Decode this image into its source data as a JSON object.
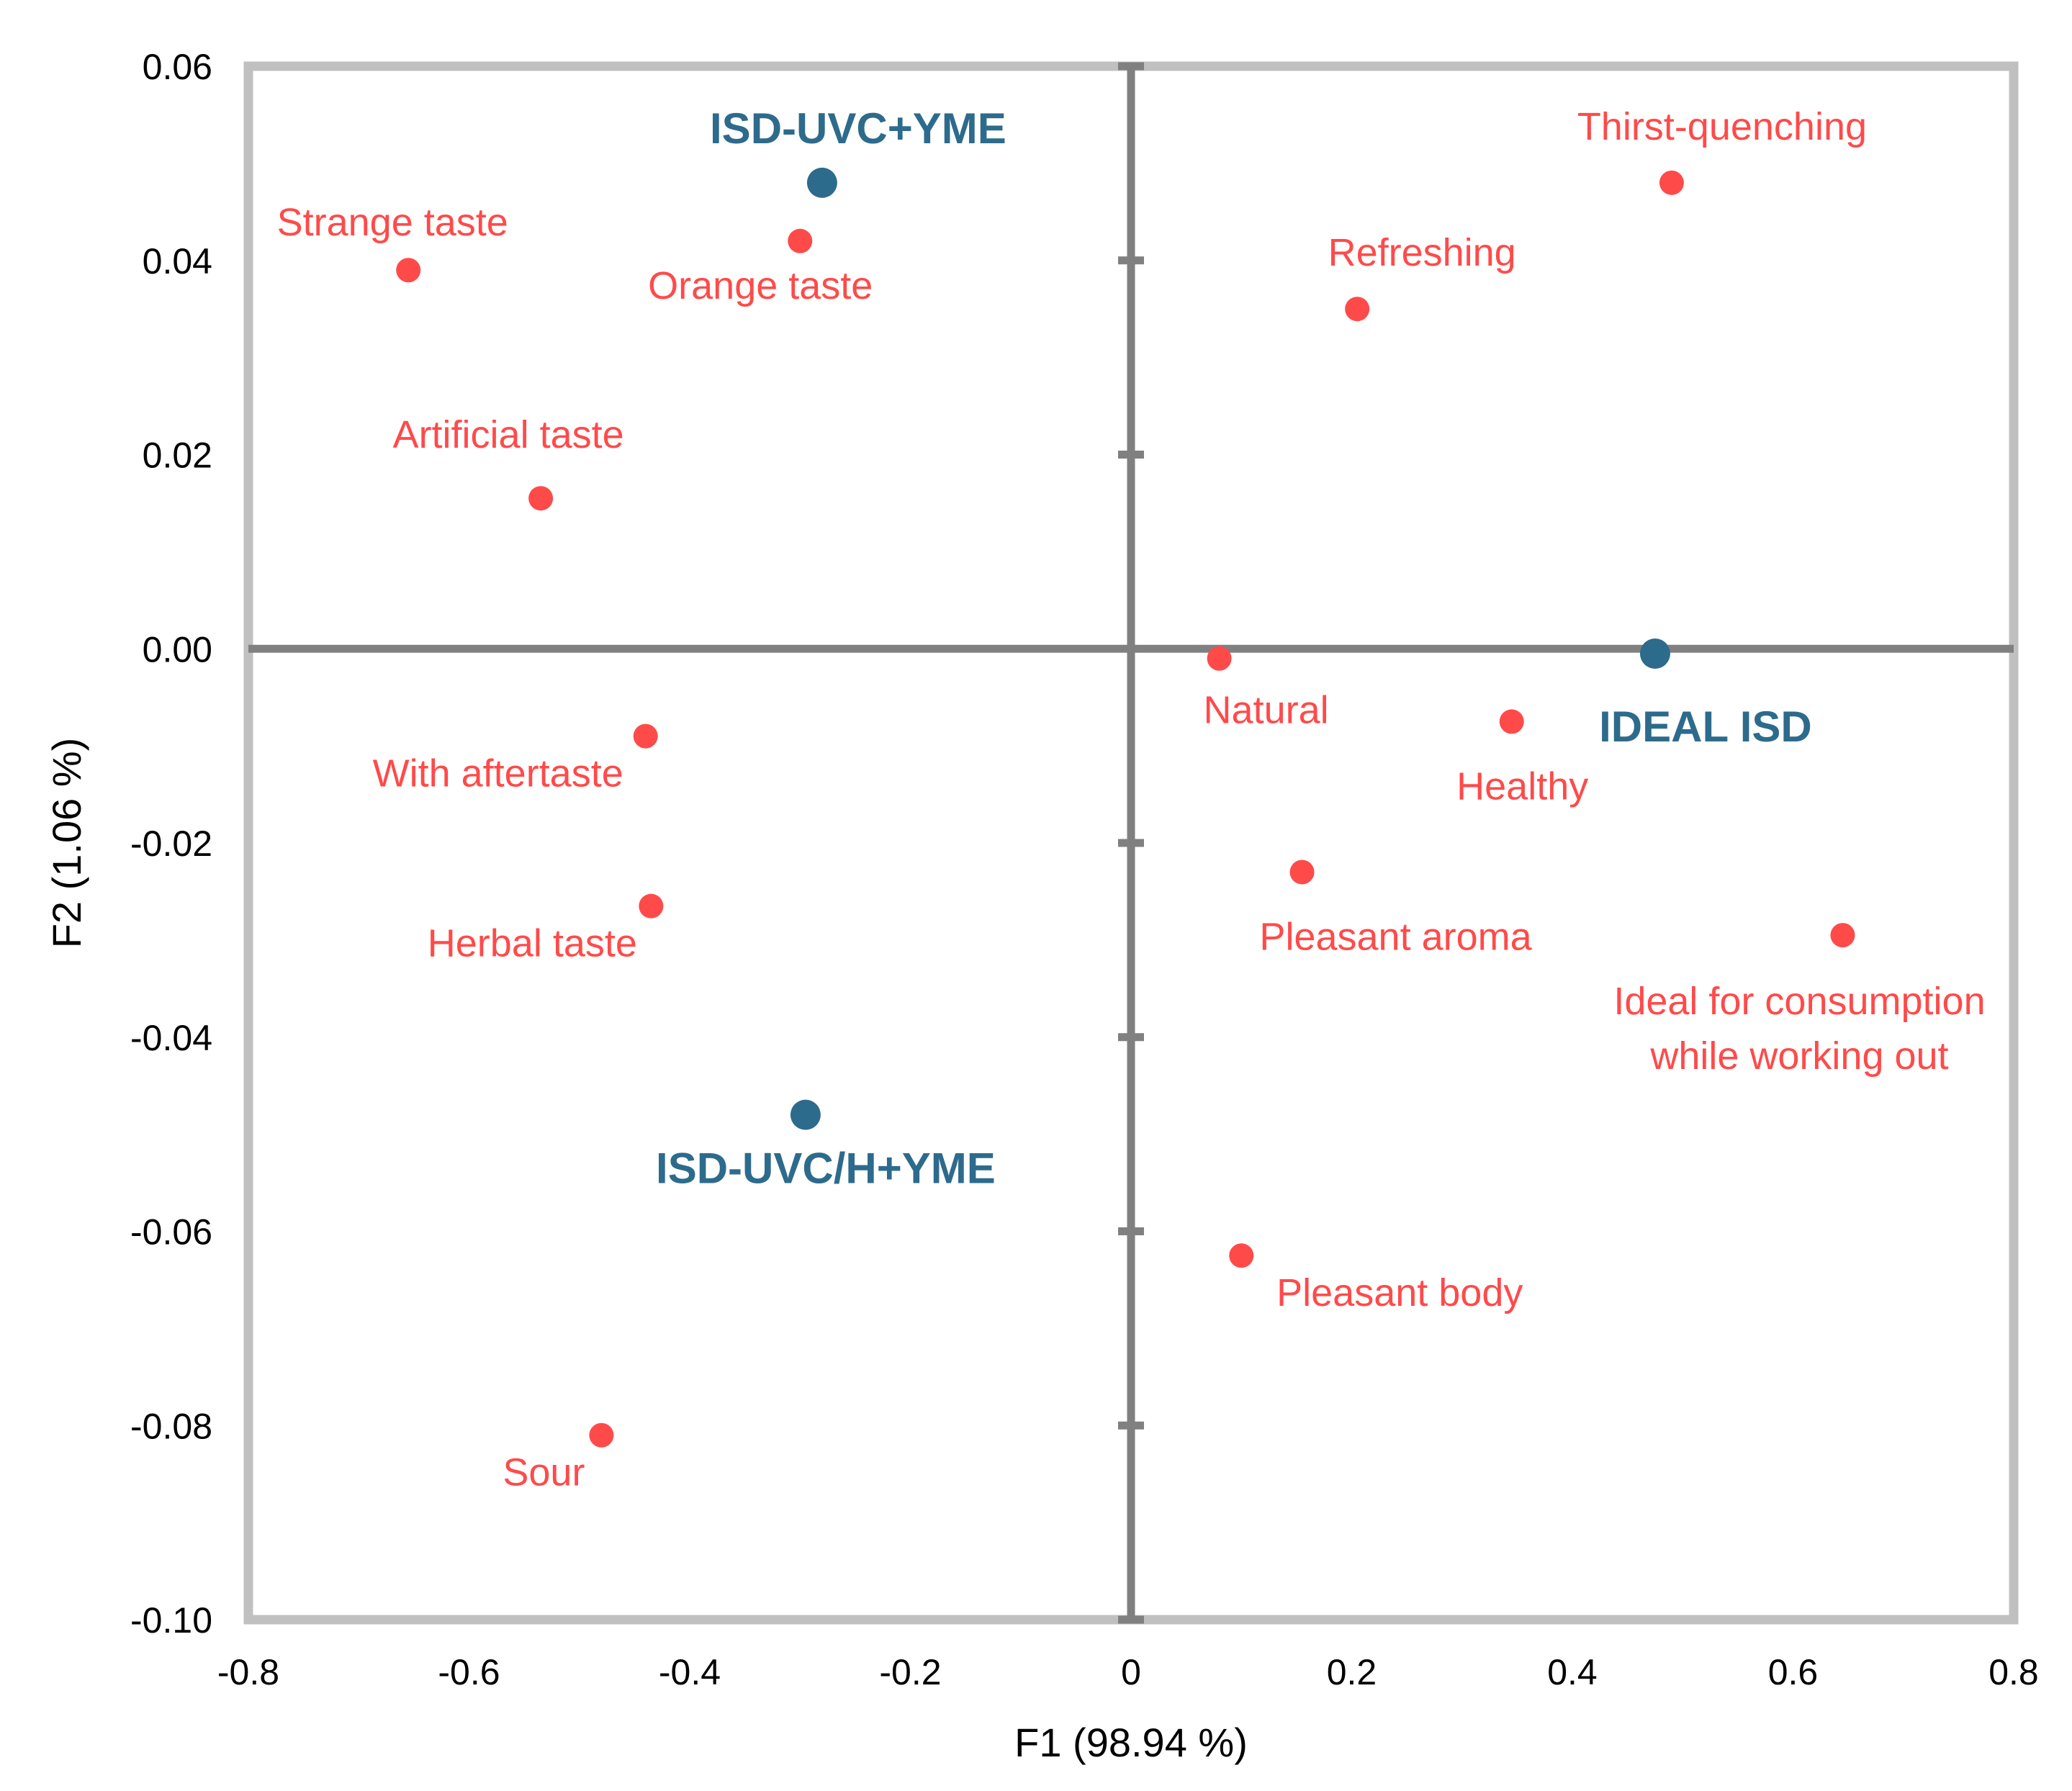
{
  "chart_data": {
    "type": "scatter",
    "xlabel": "F1 (98.94 %)",
    "ylabel": "F2 (1.06 %)",
    "xlim": [
      -0.8,
      0.8
    ],
    "ylim": [
      -0.1,
      0.06
    ],
    "x_ticks": [
      "-0.8",
      "-0.6",
      "-0.4",
      "-0.2",
      "0",
      "0.2",
      "0.4",
      "0.6",
      "0.8"
    ],
    "y_ticks": [
      "0.06",
      "0.04",
      "0.02",
      "0.00",
      "-0.02",
      "-0.04",
      "-0.06",
      "-0.08",
      "-0.10"
    ],
    "grid": false,
    "colors": {
      "attribute": "#ff4a4a",
      "product": "#2d6b8c",
      "frame": "#c0c0c0",
      "axis": "#808080"
    },
    "series": [
      {
        "name": "Attributes",
        "points": [
          {
            "label": "Thirst-quenching",
            "x": 0.49,
            "y": 0.048
          },
          {
            "label": "Refreshing",
            "x": 0.205,
            "y": 0.035
          },
          {
            "label": "Strange taste",
            "x": -0.655,
            "y": 0.039
          },
          {
            "label": "Orange taste",
            "x": -0.3,
            "y": 0.042
          },
          {
            "label": "Artificial taste",
            "x": -0.535,
            "y": 0.0155
          },
          {
            "label": "Natural",
            "x": 0.08,
            "y": -0.001
          },
          {
            "label": "Healthy",
            "x": 0.345,
            "y": -0.0075
          },
          {
            "label": "With aftertaste",
            "x": -0.44,
            "y": -0.009
          },
          {
            "label": "Herbal taste",
            "x": -0.435,
            "y": -0.0265
          },
          {
            "label": "Pleasant aroma",
            "x": 0.155,
            "y": -0.023
          },
          {
            "label": "Ideal for consumption while working out",
            "lines": [
              "Ideal for consumption",
              "while working out"
            ],
            "x": 0.645,
            "y": -0.0295
          },
          {
            "label": "Pleasant body",
            "x": 0.1,
            "y": -0.0625
          },
          {
            "label": "Sour",
            "x": -0.48,
            "y": -0.081
          }
        ]
      },
      {
        "name": "Products",
        "points": [
          {
            "label": "ISD-UVC+YME",
            "x": -0.28,
            "y": 0.048
          },
          {
            "label": "IDEAL ISD",
            "x": 0.475,
            "y": -0.0005
          },
          {
            "label": "ISD-UVC/H+YME",
            "x": -0.295,
            "y": -0.048
          }
        ]
      }
    ]
  }
}
